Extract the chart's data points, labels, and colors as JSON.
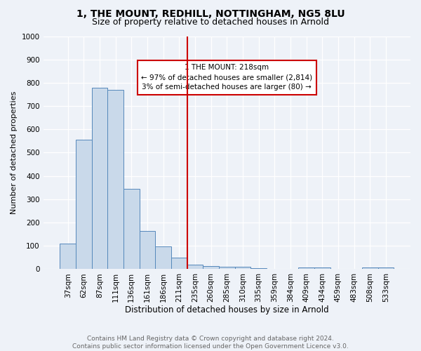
{
  "title1": "1, THE MOUNT, REDHILL, NOTTINGHAM, NG5 8LU",
  "title2": "Size of property relative to detached houses in Arnold",
  "xlabel": "Distribution of detached houses by size in Arnold",
  "ylabel": "Number of detached properties",
  "bar_labels": [
    "37sqm",
    "62sqm",
    "87sqm",
    "111sqm",
    "136sqm",
    "161sqm",
    "186sqm",
    "211sqm",
    "235sqm",
    "260sqm",
    "285sqm",
    "310sqm",
    "335sqm",
    "359sqm",
    "384sqm",
    "409sqm",
    "434sqm",
    "459sqm",
    "483sqm",
    "508sqm",
    "533sqm"
  ],
  "bar_values": [
    110,
    555,
    778,
    768,
    345,
    163,
    97,
    50,
    18,
    12,
    10,
    10,
    5,
    0,
    0,
    8,
    8,
    0,
    0,
    8,
    8
  ],
  "bar_color": "#c9d9ea",
  "bar_edge_color": "#5588bb",
  "vline_x_idx": 7,
  "vline_color": "#cc0000",
  "annotation_text": "1 THE MOUNT: 218sqm\n← 97% of detached houses are smaller (2,814)\n3% of semi-detached houses are larger (80) →",
  "annotation_box_color": "#ffffff",
  "annotation_border_color": "#cc0000",
  "ylim": [
    0,
    1000
  ],
  "yticks": [
    0,
    100,
    200,
    300,
    400,
    500,
    600,
    700,
    800,
    900,
    1000
  ],
  "footer_text": "Contains HM Land Registry data © Crown copyright and database right 2024.\nContains public sector information licensed under the Open Government Licence v3.0.",
  "bg_color": "#eef2f8",
  "plot_bg_color": "#eef2f8",
  "grid_color": "#ffffff",
  "title1_fontsize": 10,
  "title2_fontsize": 9,
  "xlabel_fontsize": 8.5,
  "ylabel_fontsize": 8,
  "tick_fontsize": 7.5,
  "footer_fontsize": 6.5
}
